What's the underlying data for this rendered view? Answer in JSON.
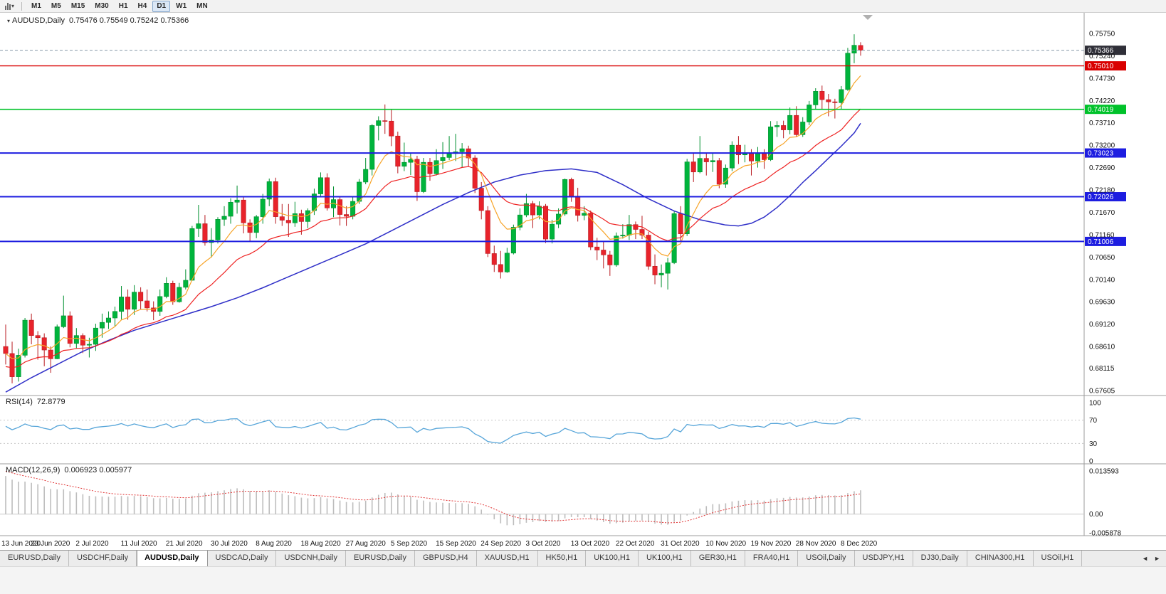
{
  "toolbar": {
    "timeframes": [
      {
        "label": "M1",
        "active": false
      },
      {
        "label": "M5",
        "active": false
      },
      {
        "label": "M15",
        "active": false
      },
      {
        "label": "M30",
        "active": false
      },
      {
        "label": "H1",
        "active": false
      },
      {
        "label": "H4",
        "active": false
      },
      {
        "label": "D1",
        "active": true
      },
      {
        "label": "W1",
        "active": false
      },
      {
        "label": "MN",
        "active": false
      }
    ]
  },
  "icons": {
    "dropdown": "▾",
    "header_marker": "▾",
    "scroll_left": "◄",
    "scroll_right": "►"
  },
  "colors": {
    "up": "#00b43c",
    "up_stroke": "#008f2f",
    "down": "#e8232b",
    "down_stroke": "#b81a20",
    "ma_fast": "#f7a428",
    "ma_mid": "#ee2222",
    "ma_slow": "#2f2fc8",
    "bid_badge": "#2f2f38",
    "axis_text": "#111111",
    "divider": "#9c9c9c"
  },
  "chart_data": {
    "type": "candlestick",
    "header": {
      "symbol": "AUDUSD,Daily",
      "ohlc": "0.75476 0.75549 0.75242 0.75366"
    },
    "price_axis_labels": [
      "0.75750",
      "0.75240",
      "0.74730",
      "0.74220",
      "0.73710",
      "0.73200",
      "0.72690",
      "0.72180",
      "0.71670",
      "0.71160",
      "0.70650",
      "0.70140",
      "0.69630",
      "0.69120",
      "0.68610",
      "0.68115",
      "0.67605"
    ],
    "price_range": {
      "max": 0.7622,
      "min": 0.67492
    },
    "bid": {
      "price": 0.75366,
      "label": "0.75366",
      "color": "#2f2f38"
    },
    "horizontal_lines": [
      {
        "price": 0.7501,
        "label": "0.75010",
        "color": "#d90000",
        "width": 1.4
      },
      {
        "price": 0.74019,
        "label": "0.74019",
        "color": "#00c22a",
        "width": 1.6
      },
      {
        "price": 0.73023,
        "label": "0.73023",
        "color": "#1d1de0",
        "width": 2
      },
      {
        "price": 0.72026,
        "label": "0.72026",
        "color": "#1d1de0",
        "width": 2
      },
      {
        "price": 0.71006,
        "label": "0.71006",
        "color": "#1d1de0",
        "width": 2
      }
    ],
    "date_labels": [
      "13 Jun 2020",
      "23 Jun 2020",
      "2 Jul 2020",
      "11 Jul 2020",
      "21 Jul 2020",
      "30 Jul 2020",
      "8 Aug 2020",
      "18 Aug 2020",
      "27 Aug 2020",
      "5 Sep 2020",
      "15 Sep 2020",
      "24 Sep 2020",
      "3 Oct 2020",
      "13 Oct 2020",
      "22 Oct 2020",
      "31 Oct 2020",
      "10 Nov 2020",
      "19 Nov 2020",
      "28 Nov 2020",
      "8 Dec 2020"
    ],
    "date_label_indices": [
      0,
      7,
      14,
      21,
      28,
      35,
      42,
      49,
      56,
      63,
      70,
      77,
      84,
      91,
      98,
      105,
      112,
      119,
      126,
      133
    ],
    "moving_averages": {
      "fast": {
        "period": 8,
        "color": "#f7a428"
      },
      "mid": {
        "period": 20,
        "seed_offset": -0.003,
        "color": "#ee2222"
      },
      "slow": {
        "color": "#2f2fc8",
        "points": [
          [
            0,
            0.6757
          ],
          [
            4,
            0.679
          ],
          [
            8,
            0.682
          ],
          [
            12,
            0.685
          ],
          [
            16,
            0.6875
          ],
          [
            20,
            0.6898
          ],
          [
            24,
            0.6916
          ],
          [
            28,
            0.6934
          ],
          [
            32,
            0.6952
          ],
          [
            36,
            0.6972
          ],
          [
            40,
            0.6995
          ],
          [
            44,
            0.702
          ],
          [
            48,
            0.7045
          ],
          [
            52,
            0.707
          ],
          [
            56,
            0.7095
          ],
          [
            60,
            0.7125
          ],
          [
            64,
            0.7155
          ],
          [
            68,
            0.7185
          ],
          [
            72,
            0.7212
          ],
          [
            76,
            0.7236
          ],
          [
            80,
            0.7252
          ],
          [
            84,
            0.7262
          ],
          [
            88,
            0.7266
          ],
          [
            92,
            0.7258
          ],
          [
            96,
            0.723
          ],
          [
            100,
            0.7198
          ],
          [
            104,
            0.717
          ],
          [
            108,
            0.715
          ],
          [
            112,
            0.7138
          ],
          [
            114,
            0.7136
          ],
          [
            116,
            0.7142
          ],
          [
            118,
            0.7156
          ],
          [
            120,
            0.7178
          ],
          [
            122,
            0.7205
          ],
          [
            124,
            0.7235
          ],
          [
            126,
            0.7262
          ],
          [
            128,
            0.729
          ],
          [
            130,
            0.7318
          ],
          [
            132,
            0.7348
          ],
          [
            133,
            0.737
          ]
        ]
      }
    },
    "indicators": {
      "rsi": {
        "name": "RSI(14)",
        "value": "72.8779",
        "period": 14,
        "color": "#56a5d9",
        "axis_labels": [
          "100",
          "70",
          "30",
          "0"
        ],
        "levels": [
          70,
          30
        ],
        "seed_gain": 0.0022,
        "seed_loss": 0.0015
      },
      "macd": {
        "name": "MACD(12,26,9)",
        "values": "0.006923 0.005977",
        "axis_labels": [
          "0.013593",
          "0.00",
          "-0.005878"
        ],
        "scale_max": 0.013593,
        "scale_min": -0.005878,
        "hist_color": "#bdbdbd",
        "signal_color": "#e03535",
        "seeds": {
          "ema12": -0.002,
          "ema26": -0.014,
          "signal": 0.0135
        }
      }
    },
    "candles": [
      [
        0.6861,
        0.6911,
        0.682,
        0.6845
      ],
      [
        0.6845,
        0.6872,
        0.6777,
        0.6792
      ],
      [
        0.6792,
        0.6856,
        0.6781,
        0.6841
      ],
      [
        0.6841,
        0.6926,
        0.6836,
        0.6921
      ],
      [
        0.6921,
        0.6936,
        0.6866,
        0.6886
      ],
      [
        0.6886,
        0.6896,
        0.6831,
        0.6881
      ],
      [
        0.6881,
        0.6891,
        0.6816,
        0.6853
      ],
      [
        0.6853,
        0.6861,
        0.6801,
        0.6833
      ],
      [
        0.6833,
        0.6911,
        0.6832,
        0.6906
      ],
      [
        0.6906,
        0.6977,
        0.6903,
        0.6931
      ],
      [
        0.6931,
        0.6941,
        0.6859,
        0.6868
      ],
      [
        0.6868,
        0.6903,
        0.6856,
        0.6886
      ],
      [
        0.6886,
        0.6891,
        0.6846,
        0.6864
      ],
      [
        0.6864,
        0.6881,
        0.6836,
        0.6866
      ],
      [
        0.6866,
        0.6913,
        0.6851,
        0.6903
      ],
      [
        0.6903,
        0.6936,
        0.6881,
        0.6916
      ],
      [
        0.6916,
        0.6941,
        0.6901,
        0.6926
      ],
      [
        0.6926,
        0.6952,
        0.6906,
        0.6941
      ],
      [
        0.6941,
        0.6999,
        0.6923,
        0.6974
      ],
      [
        0.6974,
        0.6991,
        0.6922,
        0.6946
      ],
      [
        0.6946,
        0.7001,
        0.6933,
        0.6985
      ],
      [
        0.6985,
        0.6996,
        0.6946,
        0.6965
      ],
      [
        0.6965,
        0.6991,
        0.6941,
        0.6949
      ],
      [
        0.6949,
        0.6964,
        0.6921,
        0.6941
      ],
      [
        0.6941,
        0.6991,
        0.6931,
        0.6975
      ],
      [
        0.6975,
        0.7019,
        0.6971,
        0.7005
      ],
      [
        0.7005,
        0.7011,
        0.6956,
        0.6963
      ],
      [
        0.6963,
        0.7006,
        0.6961,
        0.6996
      ],
      [
        0.6996,
        0.7037,
        0.6991,
        0.7012
      ],
      [
        0.7012,
        0.7136,
        0.7011,
        0.713
      ],
      [
        0.713,
        0.7184,
        0.7111,
        0.7141
      ],
      [
        0.7141,
        0.7161,
        0.7091,
        0.7098
      ],
      [
        0.7098,
        0.7131,
        0.7064,
        0.7104
      ],
      [
        0.7104,
        0.7156,
        0.7096,
        0.7151
      ],
      [
        0.7151,
        0.7181,
        0.7136,
        0.7158
      ],
      [
        0.7158,
        0.7199,
        0.7141,
        0.719
      ],
      [
        0.719,
        0.7228,
        0.7164,
        0.7195
      ],
      [
        0.7195,
        0.7201,
        0.7119,
        0.7143
      ],
      [
        0.7143,
        0.7151,
        0.7101,
        0.7121
      ],
      [
        0.7121,
        0.7161,
        0.7108,
        0.7157
      ],
      [
        0.7157,
        0.7209,
        0.7141,
        0.7197
      ],
      [
        0.7197,
        0.7244,
        0.7181,
        0.7237
      ],
      [
        0.7237,
        0.7246,
        0.7141,
        0.7157
      ],
      [
        0.7157,
        0.7186,
        0.7136,
        0.7149
      ],
      [
        0.7149,
        0.7186,
        0.7111,
        0.7143
      ],
      [
        0.7143,
        0.7191,
        0.7134,
        0.7164
      ],
      [
        0.7164,
        0.7173,
        0.7116,
        0.7146
      ],
      [
        0.7146,
        0.7176,
        0.7131,
        0.7171
      ],
      [
        0.7171,
        0.7221,
        0.7161,
        0.7209
      ],
      [
        0.7209,
        0.7258,
        0.7201,
        0.7246
      ],
      [
        0.7246,
        0.7256,
        0.7171,
        0.7177
      ],
      [
        0.7177,
        0.7226,
        0.7156,
        0.7196
      ],
      [
        0.7196,
        0.7201,
        0.7137,
        0.7162
      ],
      [
        0.7162,
        0.7181,
        0.7136,
        0.7158
      ],
      [
        0.7158,
        0.7201,
        0.7151,
        0.7192
      ],
      [
        0.7192,
        0.7243,
        0.7186,
        0.7236
      ],
      [
        0.7236,
        0.7291,
        0.7231,
        0.7265
      ],
      [
        0.7265,
        0.7368,
        0.7251,
        0.7365
      ],
      [
        0.7365,
        0.7386,
        0.7331,
        0.7376
      ],
      [
        0.7376,
        0.7413,
        0.7346,
        0.7375
      ],
      [
        0.7375,
        0.7401,
        0.7318,
        0.7341
      ],
      [
        0.7341,
        0.7351,
        0.7256,
        0.7272
      ],
      [
        0.7272,
        0.7326,
        0.7261,
        0.7281
      ],
      [
        0.7281,
        0.7301,
        0.7252,
        0.7288
      ],
      [
        0.7288,
        0.7296,
        0.7193,
        0.7214
      ],
      [
        0.7214,
        0.7291,
        0.7211,
        0.7281
      ],
      [
        0.7281,
        0.7291,
        0.7239,
        0.7255
      ],
      [
        0.7255,
        0.7311,
        0.7251,
        0.7285
      ],
      [
        0.7285,
        0.7327,
        0.7266,
        0.7292
      ],
      [
        0.7292,
        0.7341,
        0.7286,
        0.7301
      ],
      [
        0.7301,
        0.7346,
        0.7284,
        0.7305
      ],
      [
        0.7305,
        0.7325,
        0.7269,
        0.7312
      ],
      [
        0.7312,
        0.7319,
        0.7271,
        0.7291
      ],
      [
        0.7291,
        0.7297,
        0.7211,
        0.7222
      ],
      [
        0.7222,
        0.7236,
        0.7151,
        0.7171
      ],
      [
        0.7171,
        0.7181,
        0.7065,
        0.7073
      ],
      [
        0.7073,
        0.7091,
        0.7031,
        0.7048
      ],
      [
        0.7048,
        0.7079,
        0.7016,
        0.7031
      ],
      [
        0.7031,
        0.7086,
        0.7029,
        0.7074
      ],
      [
        0.7074,
        0.7139,
        0.7071,
        0.7133
      ],
      [
        0.7133,
        0.7176,
        0.7126,
        0.7161
      ],
      [
        0.7161,
        0.7209,
        0.7156,
        0.7187
      ],
      [
        0.7187,
        0.7193,
        0.7131,
        0.7161
      ],
      [
        0.7161,
        0.7192,
        0.7151,
        0.7181
      ],
      [
        0.7181,
        0.7186,
        0.7097,
        0.7106
      ],
      [
        0.7106,
        0.715,
        0.7096,
        0.714
      ],
      [
        0.714,
        0.7176,
        0.7131,
        0.7163
      ],
      [
        0.7163,
        0.7244,
        0.7159,
        0.7242
      ],
      [
        0.7242,
        0.7246,
        0.7191,
        0.7204
      ],
      [
        0.7204,
        0.7223,
        0.7146,
        0.716
      ],
      [
        0.716,
        0.7181,
        0.7149,
        0.7165
      ],
      [
        0.7165,
        0.7171,
        0.7081,
        0.7088
      ],
      [
        0.7088,
        0.7109,
        0.7058,
        0.7081
      ],
      [
        0.7081,
        0.71,
        0.7039,
        0.707
      ],
      [
        0.707,
        0.7079,
        0.7022,
        0.7047
      ],
      [
        0.7047,
        0.7121,
        0.7043,
        0.7113
      ],
      [
        0.7113,
        0.714,
        0.7107,
        0.7115
      ],
      [
        0.7115,
        0.7161,
        0.7104,
        0.7139
      ],
      [
        0.7139,
        0.7146,
        0.7106,
        0.7128
      ],
      [
        0.7128,
        0.7159,
        0.7106,
        0.7115
      ],
      [
        0.7115,
        0.7123,
        0.7036,
        0.7044
      ],
      [
        0.7044,
        0.7071,
        0.7003,
        0.7024
      ],
      [
        0.7024,
        0.7048,
        0.6996,
        0.7028
      ],
      [
        0.7028,
        0.7063,
        0.6991,
        0.7052
      ],
      [
        0.7052,
        0.7171,
        0.7049,
        0.7164
      ],
      [
        0.7164,
        0.7181,
        0.7101,
        0.7118
      ],
      [
        0.7118,
        0.7289,
        0.7113,
        0.7282
      ],
      [
        0.7282,
        0.7301,
        0.7236,
        0.7259
      ],
      [
        0.7259,
        0.7341,
        0.7256,
        0.729
      ],
      [
        0.729,
        0.7303,
        0.7251,
        0.7282
      ],
      [
        0.7282,
        0.7301,
        0.7259,
        0.7285
      ],
      [
        0.7285,
        0.7291,
        0.7222,
        0.7231
      ],
      [
        0.7231,
        0.7276,
        0.7223,
        0.7268
      ],
      [
        0.7268,
        0.7329,
        0.7261,
        0.732
      ],
      [
        0.732,
        0.7341,
        0.7277,
        0.7298
      ],
      [
        0.7298,
        0.7321,
        0.7281,
        0.7301
      ],
      [
        0.7301,
        0.7311,
        0.7251,
        0.7284
      ],
      [
        0.7284,
        0.7316,
        0.7269,
        0.7302
      ],
      [
        0.7302,
        0.7311,
        0.7266,
        0.7287
      ],
      [
        0.7287,
        0.7375,
        0.7284,
        0.7362
      ],
      [
        0.7362,
        0.7375,
        0.7339,
        0.7365
      ],
      [
        0.7365,
        0.7376,
        0.7336,
        0.7355
      ],
      [
        0.7355,
        0.7406,
        0.7345,
        0.7388
      ],
      [
        0.7388,
        0.7409,
        0.7339,
        0.7344
      ],
      [
        0.7344,
        0.7384,
        0.7339,
        0.7373
      ],
      [
        0.7373,
        0.7421,
        0.7366,
        0.7412
      ],
      [
        0.7412,
        0.745,
        0.7401,
        0.7443
      ],
      [
        0.7443,
        0.7456,
        0.7401,
        0.7424
      ],
      [
        0.7424,
        0.7437,
        0.7386,
        0.7419
      ],
      [
        0.7419,
        0.7426,
        0.7381,
        0.7417
      ],
      [
        0.7417,
        0.7455,
        0.7403,
        0.7447
      ],
      [
        0.7447,
        0.7542,
        0.7444,
        0.753
      ],
      [
        0.753,
        0.7573,
        0.7507,
        0.7548
      ],
      [
        0.75476,
        0.75549,
        0.75242,
        0.75366
      ]
    ]
  },
  "tabs": [
    {
      "label": "EURUSD,Daily",
      "active": false
    },
    {
      "label": "USDCHF,Daily",
      "active": false
    },
    {
      "label": "AUDUSD,Daily",
      "active": true
    },
    {
      "label": "USDCAD,Daily",
      "active": false
    },
    {
      "label": "USDCNH,Daily",
      "active": false
    },
    {
      "label": "EURUSD,Daily",
      "active": false
    },
    {
      "label": "GBPUSD,H4",
      "active": false
    },
    {
      "label": "XAUUSD,H1",
      "active": false
    },
    {
      "label": "HK50,H1",
      "active": false
    },
    {
      "label": "UK100,H1",
      "active": false
    },
    {
      "label": "UK100,H1",
      "active": false
    },
    {
      "label": "GER30,H1",
      "active": false
    },
    {
      "label": "FRA40,H1",
      "active": false
    },
    {
      "label": "USOil,Daily",
      "active": false
    },
    {
      "label": "USDJPY,H1",
      "active": false
    },
    {
      "label": "DJ30,Daily",
      "active": false
    },
    {
      "label": "CHINA300,H1",
      "active": false
    },
    {
      "label": "USOil,H1",
      "active": false
    }
  ]
}
